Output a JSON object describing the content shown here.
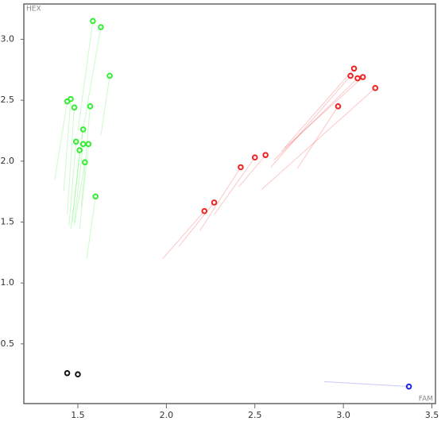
{
  "chart_data": {
    "type": "scatter",
    "x_label": "FAM",
    "y_label": "HEX",
    "xlim": [
      1.195,
      3.52
    ],
    "ylim": [
      0.01,
      3.29
    ],
    "xticks": [
      1.5,
      {
        "value": 2.0,
        "label": "2.0"
      },
      2.5,
      {
        "value": 3.0,
        "label": "3.0"
      },
      3.5
    ],
    "yticks": [
      0.5,
      {
        "value": 1.0,
        "label": "1.0"
      },
      1.5,
      {
        "value": 2.0,
        "label": "2.0"
      },
      2.5,
      {
        "value": 3.0,
        "label": "3.0"
      }
    ],
    "series": [
      {
        "color": "#33ee33",
        "x": [
          1.585,
          1.63,
          1.68,
          1.44,
          1.46,
          1.48,
          1.57,
          1.53,
          1.49,
          1.53,
          1.56,
          1.51,
          1.54,
          1.6
        ],
        "y": [
          3.15,
          3.1,
          2.7,
          2.49,
          2.51,
          2.44,
          2.45,
          2.26,
          2.16,
          2.14,
          2.14,
          2.09,
          1.99,
          1.71
        ],
        "trail_x": [
          1.5,
          1.52,
          1.63,
          1.37,
          1.42,
          1.44,
          1.52,
          1.46,
          1.45,
          1.48,
          1.51,
          1.47,
          1.48,
          1.55
        ],
        "trail_y": [
          2.25,
          2.18,
          2.21,
          1.85,
          1.75,
          1.56,
          1.63,
          1.44,
          1.47,
          1.5,
          1.44,
          1.5,
          1.47,
          1.2
        ]
      },
      {
        "color": "#ee2222",
        "x": [
          2.215,
          2.27,
          2.42,
          2.5,
          2.56,
          2.97,
          3.04,
          3.06,
          3.08,
          3.11,
          3.18
        ],
        "y": [
          1.59,
          1.66,
          1.95,
          2.03,
          2.05,
          2.45,
          2.7,
          2.76,
          2.68,
          2.69,
          2.6
        ],
        "trail_x": [
          1.98,
          2.07,
          2.19,
          2.27,
          2.41,
          2.74,
          2.59,
          2.65,
          2.61,
          2.67,
          2.54
        ],
        "trail_y": [
          1.2,
          1.3,
          1.43,
          1.56,
          1.79,
          1.94,
          1.95,
          2.08,
          2.01,
          2.11,
          1.77
        ]
      },
      {
        "color": "#111111",
        "x": [
          1.44,
          1.5
        ],
        "y": [
          0.26,
          0.25
        ]
      },
      {
        "color": "#2222ee",
        "x": [
          3.37
        ],
        "y": [
          0.15
        ],
        "trail_x": [
          2.89
        ],
        "trail_y": [
          0.19
        ]
      }
    ]
  }
}
